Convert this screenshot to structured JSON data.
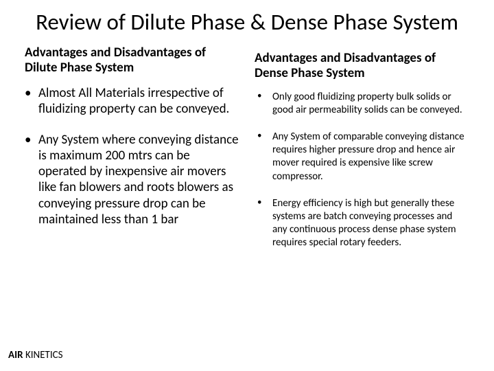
{
  "slide": {
    "title": "Review of Dilute Phase & Dense Phase System",
    "background_color": "#ffffff",
    "text_color": "#000000",
    "title_fontsize": 33,
    "subtitle_fontsize": 19,
    "left_bullet_fontsize": 19,
    "right_bullet_fontsize": 15,
    "footer_fontsize": 15
  },
  "left": {
    "subtitle": "Advantages and Disadvantages of Dilute Phase System",
    "bullets": [
      "Almost All Materials irrespective of fluidizing property can be conveyed.",
      "Any System where conveying distance is maximum 200 mtrs can be operated by inexpensive air movers like fan blowers and roots blowers as conveying pressure drop can be maintained less than 1 bar"
    ]
  },
  "right": {
    "subtitle": "Advantages and Disadvantages of Dense Phase System",
    "bullets": [
      "Only good fluidizing property bulk solids or good air permeability solids can be conveyed.",
      "Any System of comparable conveying distance requires higher pressure drop and hence air mover required is expensive like screw compressor.",
      "Energy efficiency is high but generally these systems are batch conveying processes and any continuous process dense phase system requires special rotary feeders."
    ]
  },
  "footer": {
    "bold": "AIR",
    "rest": " KINETICS"
  }
}
